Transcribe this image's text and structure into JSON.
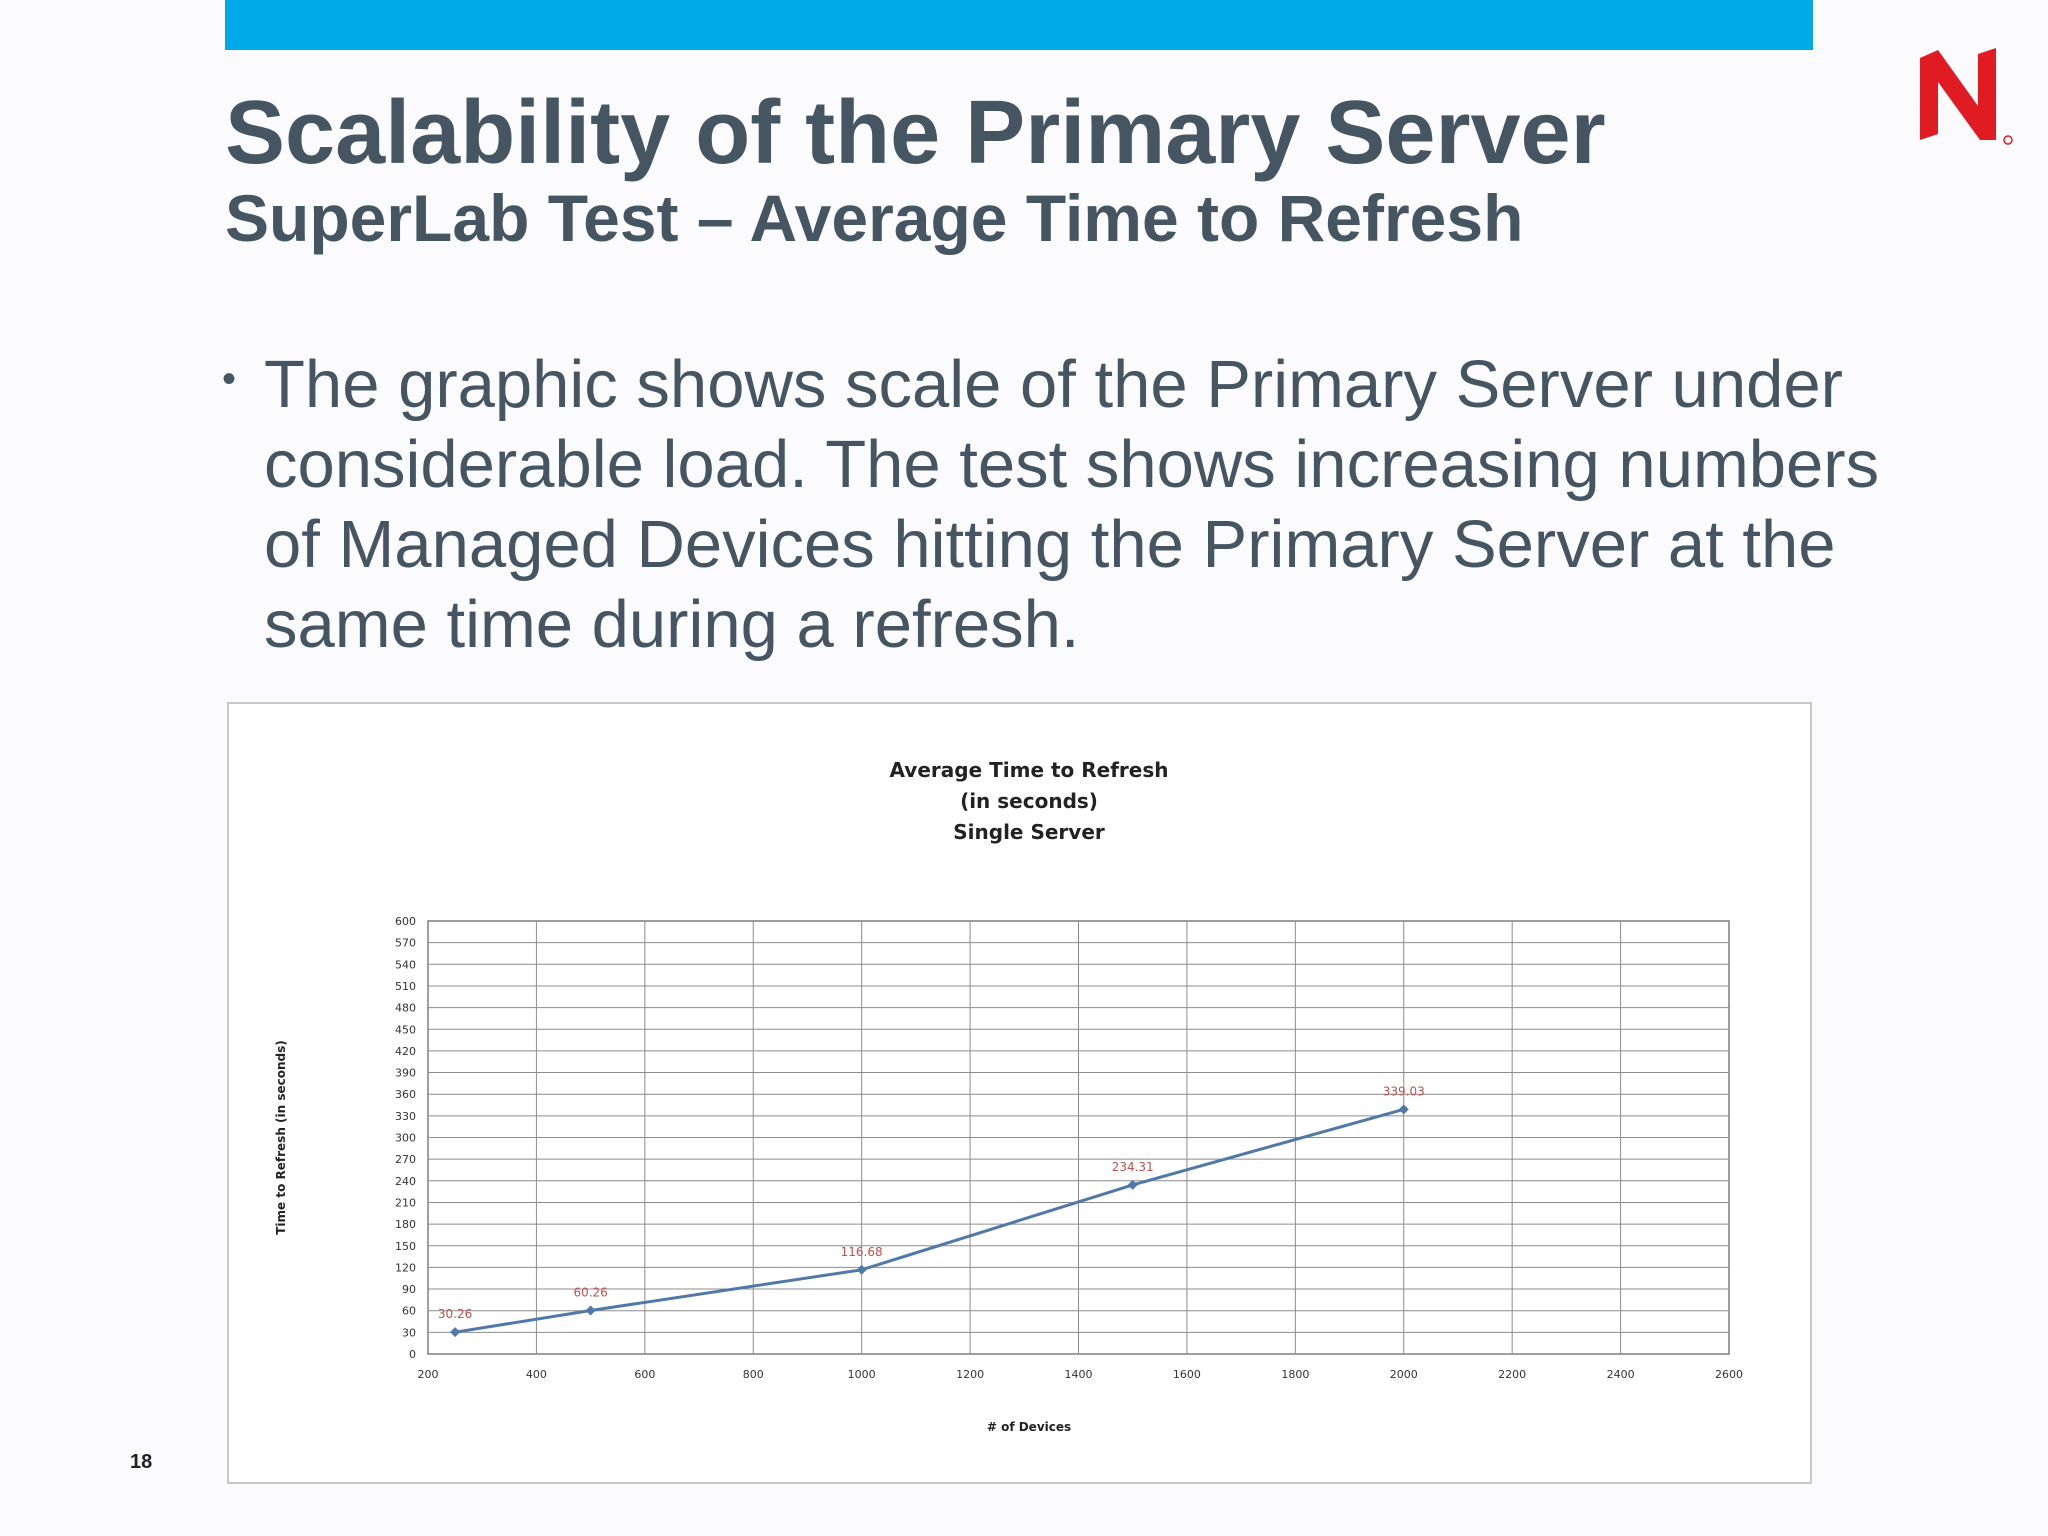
{
  "slide": {
    "title": "Scalability of the Primary Server",
    "subtitle": "SuperLab Test – Average Time to Refresh",
    "bullet": "The graphic shows scale of the Primary Server under considerable load. The test shows increasing numbers of Managed Devices hitting the Primary Server at the same time during a refresh.",
    "slide_number": "18"
  },
  "colors": {
    "accent_bar": "#00a9e8",
    "logo": "#e11b22",
    "title_text": "#465562",
    "series_line": "#4f79a6",
    "data_label": "#c0504d"
  },
  "icons": {
    "logo": "novell-n-logo"
  },
  "chart_data": {
    "type": "line",
    "title_lines": [
      "Average Time to Refresh",
      "(in seconds)",
      "Single Server"
    ],
    "xlabel": "# of Devices",
    "ylabel": "Time to Refresh (in seconds)",
    "xlim": [
      200,
      2600
    ],
    "ylim": [
      0,
      600
    ],
    "xticks": [
      200,
      400,
      600,
      800,
      1000,
      1200,
      1400,
      1600,
      1800,
      2000,
      2200,
      2400,
      2600
    ],
    "yticks": [
      0,
      30,
      60,
      90,
      120,
      150,
      180,
      210,
      240,
      270,
      300,
      330,
      360,
      390,
      420,
      450,
      480,
      510,
      540,
      570,
      600
    ],
    "grid": true,
    "series": [
      {
        "x": [
          250,
          500,
          1000,
          1500,
          2000
        ],
        "y": [
          30.26,
          60.26,
          116.68,
          234.31,
          339.03
        ],
        "labels": [
          "30.26",
          "60.26",
          "116.68",
          "234.31",
          "339.03"
        ]
      }
    ]
  }
}
